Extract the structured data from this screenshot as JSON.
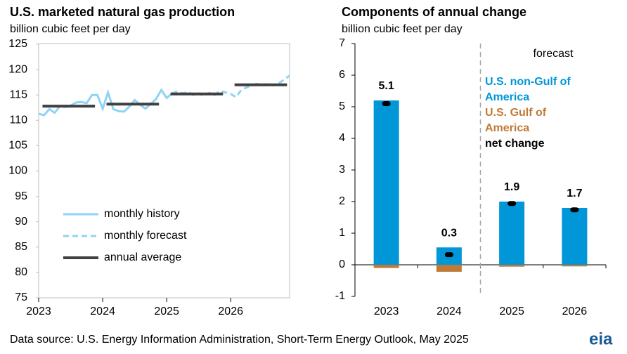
{
  "chart_data": [
    {
      "type": "line",
      "title": "U.S. marketed natural gas production",
      "subtitle": "billion cubic feet per day",
      "xlim": [
        2023,
        2026.92
      ],
      "xticks": [
        2023,
        2024,
        2025,
        2026
      ],
      "ylim": [
        75,
        125
      ],
      "yticks": [
        75,
        80,
        85,
        90,
        95,
        100,
        105,
        110,
        115,
        120,
        125
      ],
      "legend": "lower left",
      "series": [
        {
          "name": "monthly history",
          "color": "#8fd3f5",
          "linestyle": "solid",
          "x": [
            2023.0,
            2023.083,
            2023.167,
            2023.25,
            2023.333,
            2023.417,
            2023.5,
            2023.583,
            2023.667,
            2023.75,
            2023.833,
            2023.917,
            2024.0,
            2024.083,
            2024.167,
            2024.25,
            2024.333,
            2024.417,
            2024.5,
            2024.583,
            2024.667,
            2024.75,
            2024.833,
            2024.917,
            2025.0,
            2025.083
          ],
          "values": [
            111.3,
            111.0,
            112.2,
            111.5,
            112.8,
            112.6,
            112.9,
            113.5,
            113.6,
            113.4,
            115.0,
            115.0,
            112.3,
            115.5,
            112.2,
            111.8,
            111.7,
            112.7,
            114.0,
            113.1,
            112.3,
            113.2,
            114.2,
            116.0,
            114.4,
            115.3
          ]
        },
        {
          "name": "monthly forecast",
          "color": "#8fd3f5",
          "linestyle": "dashed",
          "x": [
            2025.083,
            2025.167,
            2025.25,
            2025.333,
            2025.417,
            2025.5,
            2025.583,
            2025.667,
            2025.75,
            2025.833,
            2025.917,
            2026.0,
            2026.083,
            2026.167,
            2026.25,
            2026.333,
            2026.417,
            2026.5,
            2026.583,
            2026.667,
            2026.75,
            2026.833,
            2026.917
          ],
          "values": [
            115.3,
            115.7,
            115.3,
            115.6,
            115.0,
            115.3,
            114.8,
            115.4,
            115.0,
            115.8,
            115.5,
            115.2,
            114.6,
            116.0,
            116.5,
            117.0,
            117.2,
            117.0,
            117.2,
            116.9,
            117.3,
            118.0,
            118.8
          ]
        },
        {
          "name": "annual average",
          "color": "#404040",
          "linestyle": "segments",
          "x": [
            2023,
            2024,
            2025,
            2026
          ],
          "values": [
            112.8,
            113.2,
            115.2,
            117.0
          ]
        }
      ]
    },
    {
      "type": "bar",
      "title": "Components of annual change",
      "subtitle": "billion cubic feet per day",
      "categories": [
        "2023",
        "2024",
        "2025",
        "2026"
      ],
      "ylim": [
        -1,
        7
      ],
      "yticks": [
        -1,
        0,
        1,
        2,
        3,
        4,
        5,
        6,
        7
      ],
      "annotation": "forecast",
      "series": [
        {
          "name": "U.S. non-Gulf of America",
          "color": "#0096d7",
          "kind": "bar",
          "values": [
            5.2,
            0.55,
            2.0,
            1.8
          ]
        },
        {
          "name": "U.S. Gulf of America",
          "color": "#c07a35",
          "kind": "bar",
          "values": [
            -0.1,
            -0.22,
            -0.06,
            -0.05
          ]
        },
        {
          "name": "net change",
          "color": "#000000",
          "kind": "dot",
          "values": [
            5.1,
            0.32,
            1.94,
            1.74
          ],
          "value_labels": [
            "5.1",
            "0.3",
            "1.9",
            "1.7"
          ]
        }
      ]
    }
  ],
  "footer": {
    "source": "Data source: U.S. Energy Information Administration, Short-Term Energy Outlook, May 2025",
    "logo": "eia"
  }
}
